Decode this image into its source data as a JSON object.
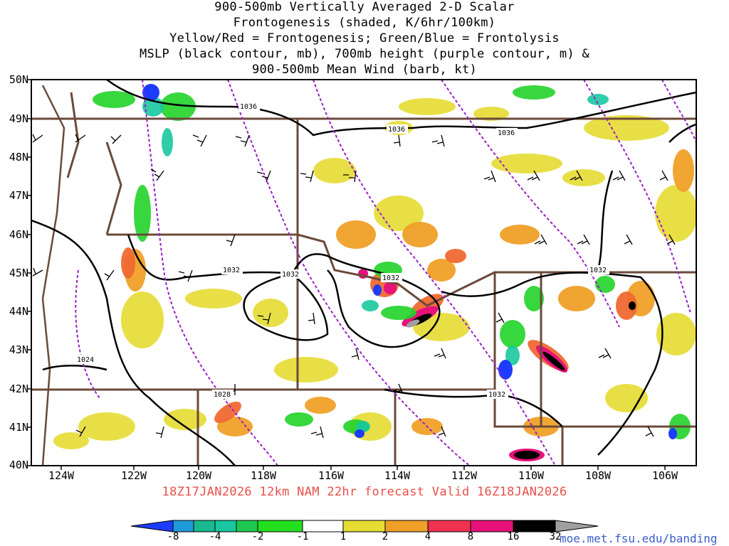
{
  "title_lines": [
    "900-500mb Vertically Averaged 2-D Scalar",
    "Frontogenesis (shaded, K/6hr/100km)",
    "Yellow/Red = Frontogenesis;  Green/Blue = Frontolysis",
    "MSLP (black contour, mb), 700mb height (purple contour, m) &",
    "900-500mb Mean Wind (barb, kt)"
  ],
  "map": {
    "lat_labels": [
      "50N",
      "49N",
      "48N",
      "47N",
      "46N",
      "45N",
      "44N",
      "43N",
      "42N",
      "41N",
      "40N"
    ],
    "lon_labels": [
      "124W",
      "122W",
      "120W",
      "118W",
      "116W",
      "114W",
      "112W",
      "110W",
      "108W",
      "106W"
    ],
    "isobar_labels": [
      "1036",
      "1036",
      "1036",
      "1032",
      "1032",
      "1032",
      "1032",
      "1032",
      "1028",
      "1024"
    ],
    "colors": {
      "mslp_contour": "#000000",
      "height_contour": "#9a1fc8",
      "borders": "#6b4a3a",
      "barbs": "#000000"
    }
  },
  "valid_line": "18Z17JAN2026 12km NAM 22hr forecast Valid 16Z18JAN2026",
  "colorbar": {
    "labels": [
      "-8",
      "-4",
      "-2",
      "-1",
      "1",
      "2",
      "4",
      "8",
      "16",
      "32"
    ],
    "colors": [
      "#1e3cff",
      "#1e9bd8",
      "#19c8a0",
      "#1ec850",
      "#22e01e",
      "#ffffff",
      "#e6dc32",
      "#f0a028",
      "#f06a32",
      "#f03250",
      "#e6127a",
      "#000000",
      "#a0a0a0"
    ]
  },
  "url": "moe.met.fsu.edu/banding"
}
